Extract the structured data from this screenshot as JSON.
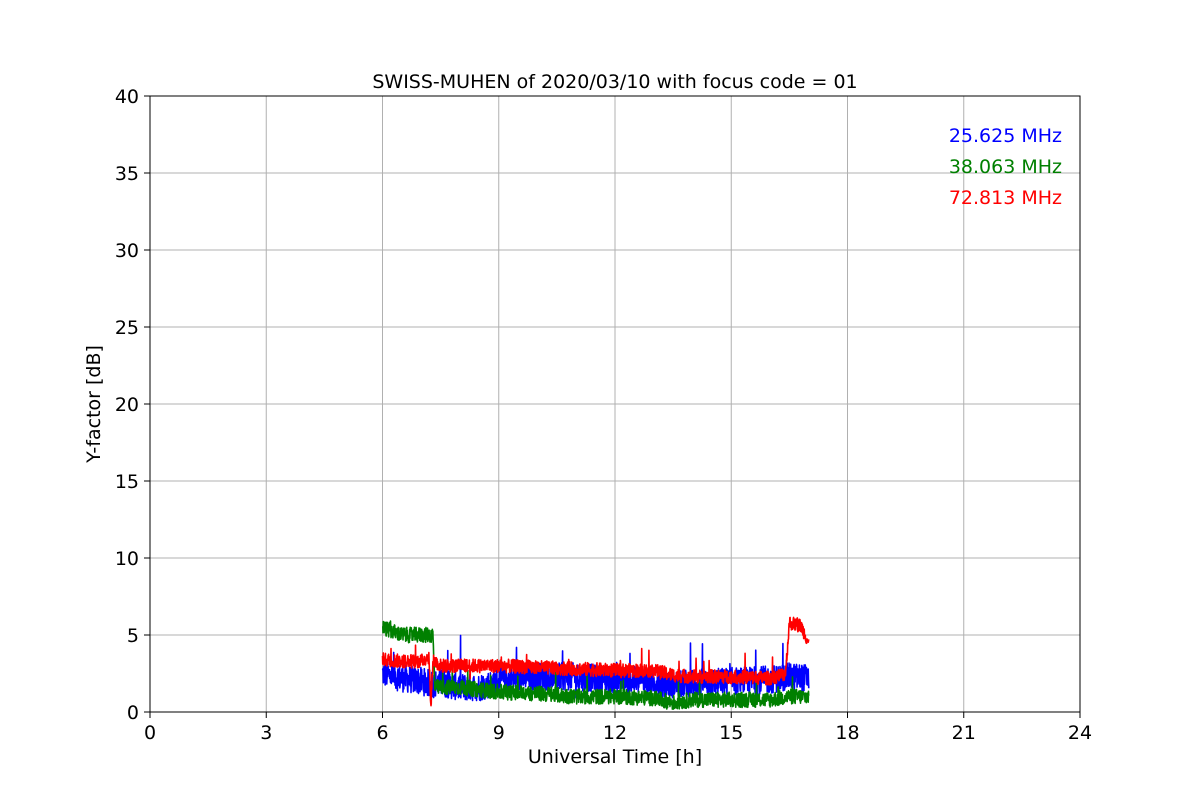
{
  "chart_data": {
    "type": "line",
    "title": "SWISS-MUHEN of 2020/03/10 with focus code = 01",
    "xlabel": "Universal Time [h]",
    "ylabel": "Y-factor [dB]",
    "xlim": [
      0,
      24
    ],
    "ylim": [
      0,
      40
    ],
    "x_ticks": [
      "0",
      "3",
      "6",
      "9",
      "12",
      "15",
      "18",
      "21",
      "24"
    ],
    "y_ticks": [
      "0",
      "5",
      "10",
      "15",
      "20",
      "25",
      "30",
      "35",
      "40"
    ],
    "grid": true,
    "legend_placement": "top-right",
    "series": [
      {
        "name": "25.625 MHz",
        "color": "#0000ff",
        "noise": 0.9,
        "x": [
          6.0,
          6.5,
          7.0,
          7.3,
          7.5,
          8.0,
          8.5,
          9.0,
          9.5,
          10.0,
          11.0,
          12.0,
          13.0,
          13.5,
          14.0,
          15.0,
          16.0,
          16.5,
          17.0
        ],
        "y": [
          2.5,
          2.2,
          2.0,
          1.8,
          1.9,
          1.6,
          1.6,
          2.0,
          2.2,
          2.3,
          2.3,
          2.1,
          2.0,
          1.8,
          1.9,
          2.0,
          2.1,
          2.3,
          2.2
        ]
      },
      {
        "name": "38.063 MHz",
        "color": "#008000",
        "noise": 0.5,
        "x": [
          6.0,
          6.5,
          7.0,
          7.3,
          7.35,
          8.0,
          9.0,
          10.0,
          11.0,
          12.0,
          13.0,
          13.5,
          14.0,
          15.0,
          16.0,
          16.5,
          17.0
        ],
        "y": [
          5.5,
          5.0,
          5.0,
          5.0,
          1.6,
          1.6,
          1.3,
          1.2,
          1.0,
          1.0,
          0.9,
          0.6,
          0.8,
          0.8,
          0.8,
          1.0,
          1.0
        ]
      },
      {
        "name": "72.813 MHz",
        "color": "#ff0000",
        "noise": 0.45,
        "x": [
          6.0,
          6.5,
          7.0,
          7.2,
          7.25,
          7.3,
          7.5,
          8.0,
          9.0,
          10.0,
          11.0,
          12.0,
          13.0,
          13.5,
          14.0,
          15.0,
          16.0,
          16.4,
          16.5,
          16.8,
          17.0
        ],
        "y": [
          3.4,
          3.3,
          3.3,
          3.6,
          0.2,
          3.4,
          3.0,
          3.0,
          3.0,
          2.9,
          2.8,
          2.7,
          2.7,
          2.4,
          2.3,
          2.3,
          2.2,
          2.5,
          5.8,
          5.6,
          4.5
        ]
      }
    ]
  }
}
